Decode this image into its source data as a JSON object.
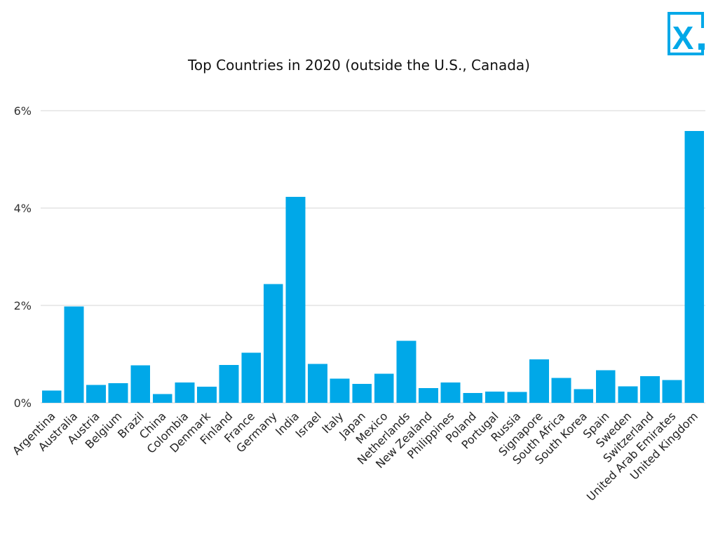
{
  "colors": {
    "bar": "#00a8e8",
    "logo": "#00a8e8"
  },
  "logo": {
    "letter": "X",
    "icon": "x-logo-icon"
  },
  "chart_data": {
    "type": "bar",
    "title": "Top Countries in 2020 (outside the U.S., Canada)",
    "xlabel": "",
    "ylabel": "",
    "ylim": [
      0,
      6
    ],
    "yticks": [
      0,
      2,
      4,
      6
    ],
    "ytick_labels": [
      "0%",
      "2%",
      "4%",
      "6%"
    ],
    "grid": true,
    "categories": [
      "Argentina",
      "Australia",
      "Austria",
      "Belgium",
      "Brazil",
      "China",
      "Colombia",
      "Denmark",
      "Finland",
      "France",
      "Germany",
      "India",
      "Israel",
      "Italy",
      "Japan",
      "Mexico",
      "Netherlands",
      "New Zealand",
      "Philippines",
      "Poland",
      "Portugal",
      "Russia",
      "Signapore",
      "South Africa",
      "South Korea",
      "Spain",
      "Sweden",
      "Switzerland",
      "United Arab Emirates",
      "United Kingdom"
    ],
    "values": [
      0.25,
      1.98,
      0.37,
      0.4,
      0.77,
      0.18,
      0.42,
      0.33,
      0.78,
      1.03,
      2.44,
      4.23,
      0.8,
      0.5,
      0.39,
      0.6,
      1.27,
      0.3,
      0.42,
      0.2,
      0.23,
      0.22,
      0.89,
      0.51,
      0.28,
      0.67,
      0.34,
      0.55,
      0.47,
      5.58
    ]
  }
}
